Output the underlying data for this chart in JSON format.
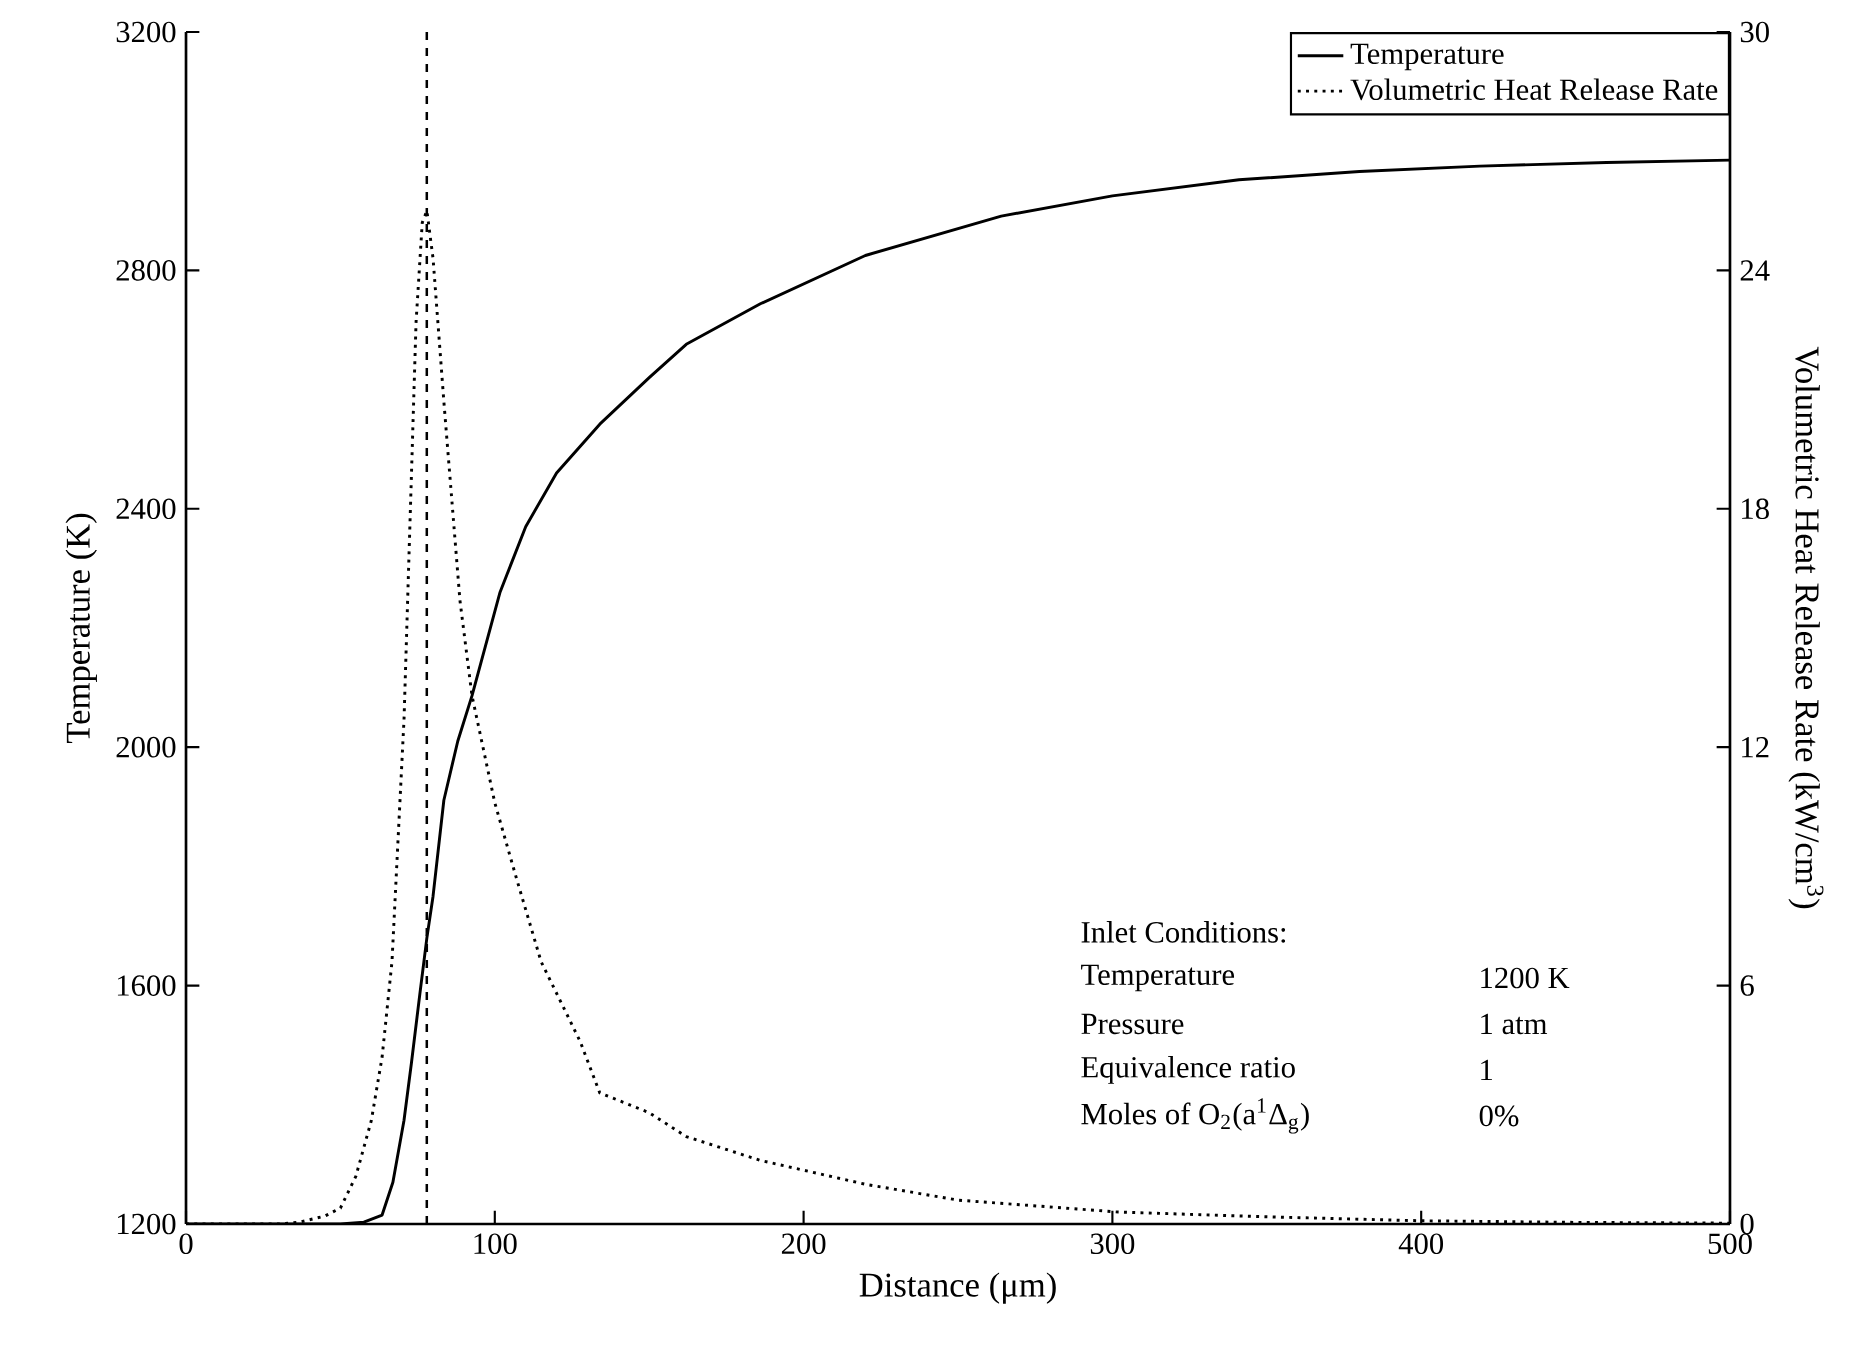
{
  "chart_data": {
    "type": "line",
    "xlabel": "Distance (μm)",
    "ylabel": "Temperature (K)",
    "y2label": "Volumetric Heat Release Rate (kW/cm$^{3}$)",
    "xlim": [
      0,
      500
    ],
    "xticks": [
      0,
      100,
      200,
      300,
      400,
      500
    ],
    "ylim": [
      1200,
      3200
    ],
    "yticks": [
      1200,
      1600,
      2000,
      2400,
      2800,
      3200
    ],
    "y2lim": [
      0,
      30
    ],
    "y2ticks": [
      0,
      6,
      12,
      18,
      24,
      30
    ],
    "legend": "top right",
    "marker": "none",
    "grid": false,
    "series": [
      {
        "name": "Temperature",
        "color": "#000000",
        "line_style": "solid",
        "x": [
          0,
          40,
          50,
          57.6,
          63.5,
          67,
          70.6,
          73,
          75.8,
          78,
          80,
          83.5,
          88,
          92.6,
          101.7,
          110,
          120,
          134,
          150,
          162,
          186,
          220,
          264,
          300,
          341,
          380,
          419,
          460,
          500
        ],
        "values": [
          1200,
          1200,
          1200,
          1203,
          1215,
          1270,
          1374,
          1470,
          1589,
          1680,
          1750,
          1911,
          2010,
          2086,
          2260,
          2370,
          2460,
          2542,
          2620,
          2676,
          2744,
          2825,
          2891,
          2925,
          2952,
          2966,
          2975,
          2981,
          2985
        ]
      },
      {
        "name": "Volumetric Heat Release Rate",
        "color": "#000000",
        "line_style": "dotted",
        "axis": "y2",
        "x": [
          0,
          30,
          37,
          45,
          50,
          55,
          60,
          63.5,
          66.7,
          70.6,
          74.5,
          76.5,
          78,
          80,
          83.5,
          88.7,
          92.6,
          100,
          107,
          115,
          127.6,
          134,
          150,
          162,
          186,
          220,
          250,
          302,
          350,
          400,
          450,
          500
        ],
        "values": [
          0,
          0,
          0.05,
          0.2,
          0.4,
          1.2,
          2.6,
          4.2,
          6.6,
          12.7,
          22.7,
          25.2,
          25.5,
          24.3,
          20.7,
          15.7,
          13.3,
          10.6,
          8.7,
          6.6,
          4.6,
          3.3,
          2.8,
          2.2,
          1.6,
          1.0,
          0.6,
          0.3,
          0.18,
          0.08,
          0.04,
          0.02
        ]
      }
    ],
    "ref_lines": [
      {
        "axis": "x",
        "value": 78,
        "line_style": "dashed",
        "color": "#000000"
      }
    ],
    "annotations": [
      "Inlet Conditions:",
      "Temperature",
      "1200 K",
      "Pressure",
      "1 atm",
      "Equivalence ratio",
      "1",
      "Moles of O$_{2}$(a$^{1}$Δ$_{g}$)",
      "0%"
    ]
  }
}
